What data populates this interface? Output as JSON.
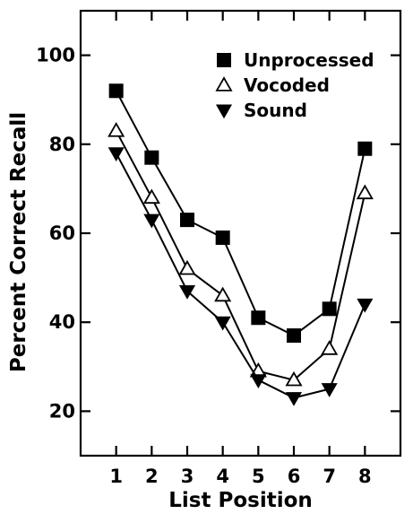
{
  "chart_data": {
    "type": "line",
    "title": "",
    "xlabel": "List Position",
    "ylabel": "Percent Correct Recall",
    "categories": [
      "1",
      "2",
      "3",
      "4",
      "5",
      "6",
      "7",
      "8"
    ],
    "x": [
      1,
      2,
      3,
      4,
      5,
      6,
      7,
      8
    ],
    "xlim": [
      0,
      9
    ],
    "ylim": [
      10,
      110
    ],
    "yticks": [
      20,
      40,
      60,
      80,
      100
    ],
    "grid": false,
    "legend_placement": "top-right",
    "series": [
      {
        "name": "Unprocessed",
        "marker": "filled-square",
        "values": [
          92,
          77,
          63,
          59,
          41,
          37,
          43,
          79
        ]
      },
      {
        "name": "Vocoded",
        "marker": "open-triangle-up",
        "values": [
          83,
          68,
          52,
          46,
          29,
          27,
          34,
          69
        ]
      },
      {
        "name": "Sound",
        "marker": "filled-triangle-down",
        "values": [
          78,
          63,
          47,
          40,
          27,
          23,
          25,
          44
        ]
      }
    ],
    "colors": {
      "line": "#000000",
      "background": "#ffffff"
    }
  }
}
